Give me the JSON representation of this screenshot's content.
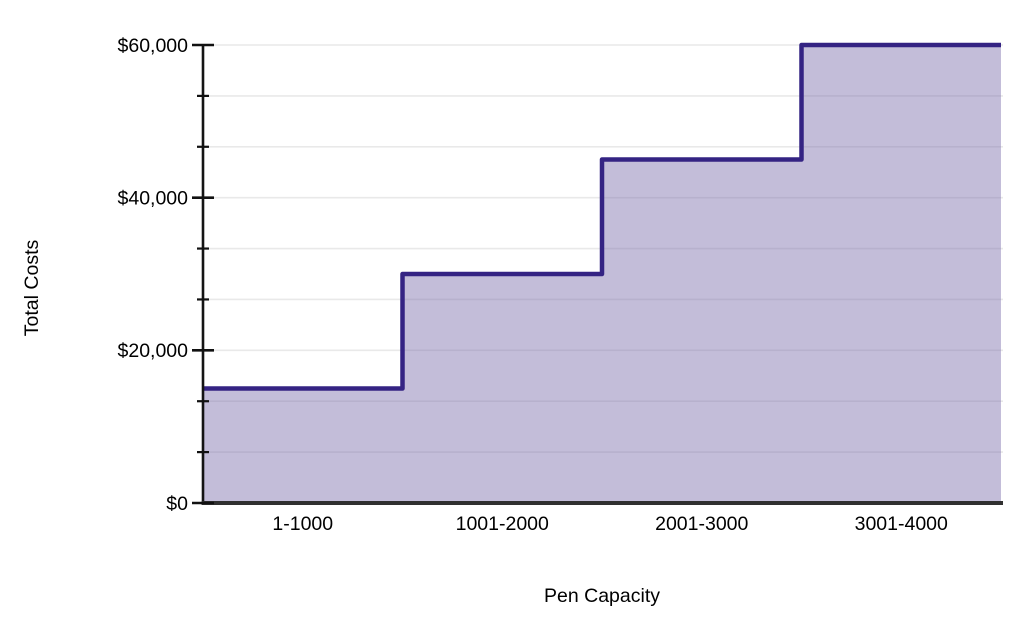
{
  "figure": {
    "background": "#ffffff"
  },
  "chart_data": {
    "type": "area",
    "subtype": "step",
    "title": "",
    "xlabel": "Pen Capacity",
    "ylabel": "Total Costs",
    "categories": [
      "1-1000",
      "1001-2000",
      "2001-3000",
      "3001-4000"
    ],
    "values": [
      15000,
      30000,
      45000,
      60000
    ],
    "ylim": [
      0,
      60000
    ],
    "y_major_tick_interval": 20000,
    "y_minor_divisions": 3,
    "y_tick_labels": [
      "$0",
      "$20,000",
      "$40,000",
      "$60,000"
    ],
    "grid": "horizontal",
    "legend": false,
    "colors": {
      "area_fill_base": "#7a6dab",
      "area_fill_opacity": 0.45,
      "step_line": "#342383",
      "y_axis": "#141414",
      "x_axis": "#303030",
      "tick": "#111111",
      "gridline": "#e9e9e9",
      "label_text": "#000000"
    }
  }
}
